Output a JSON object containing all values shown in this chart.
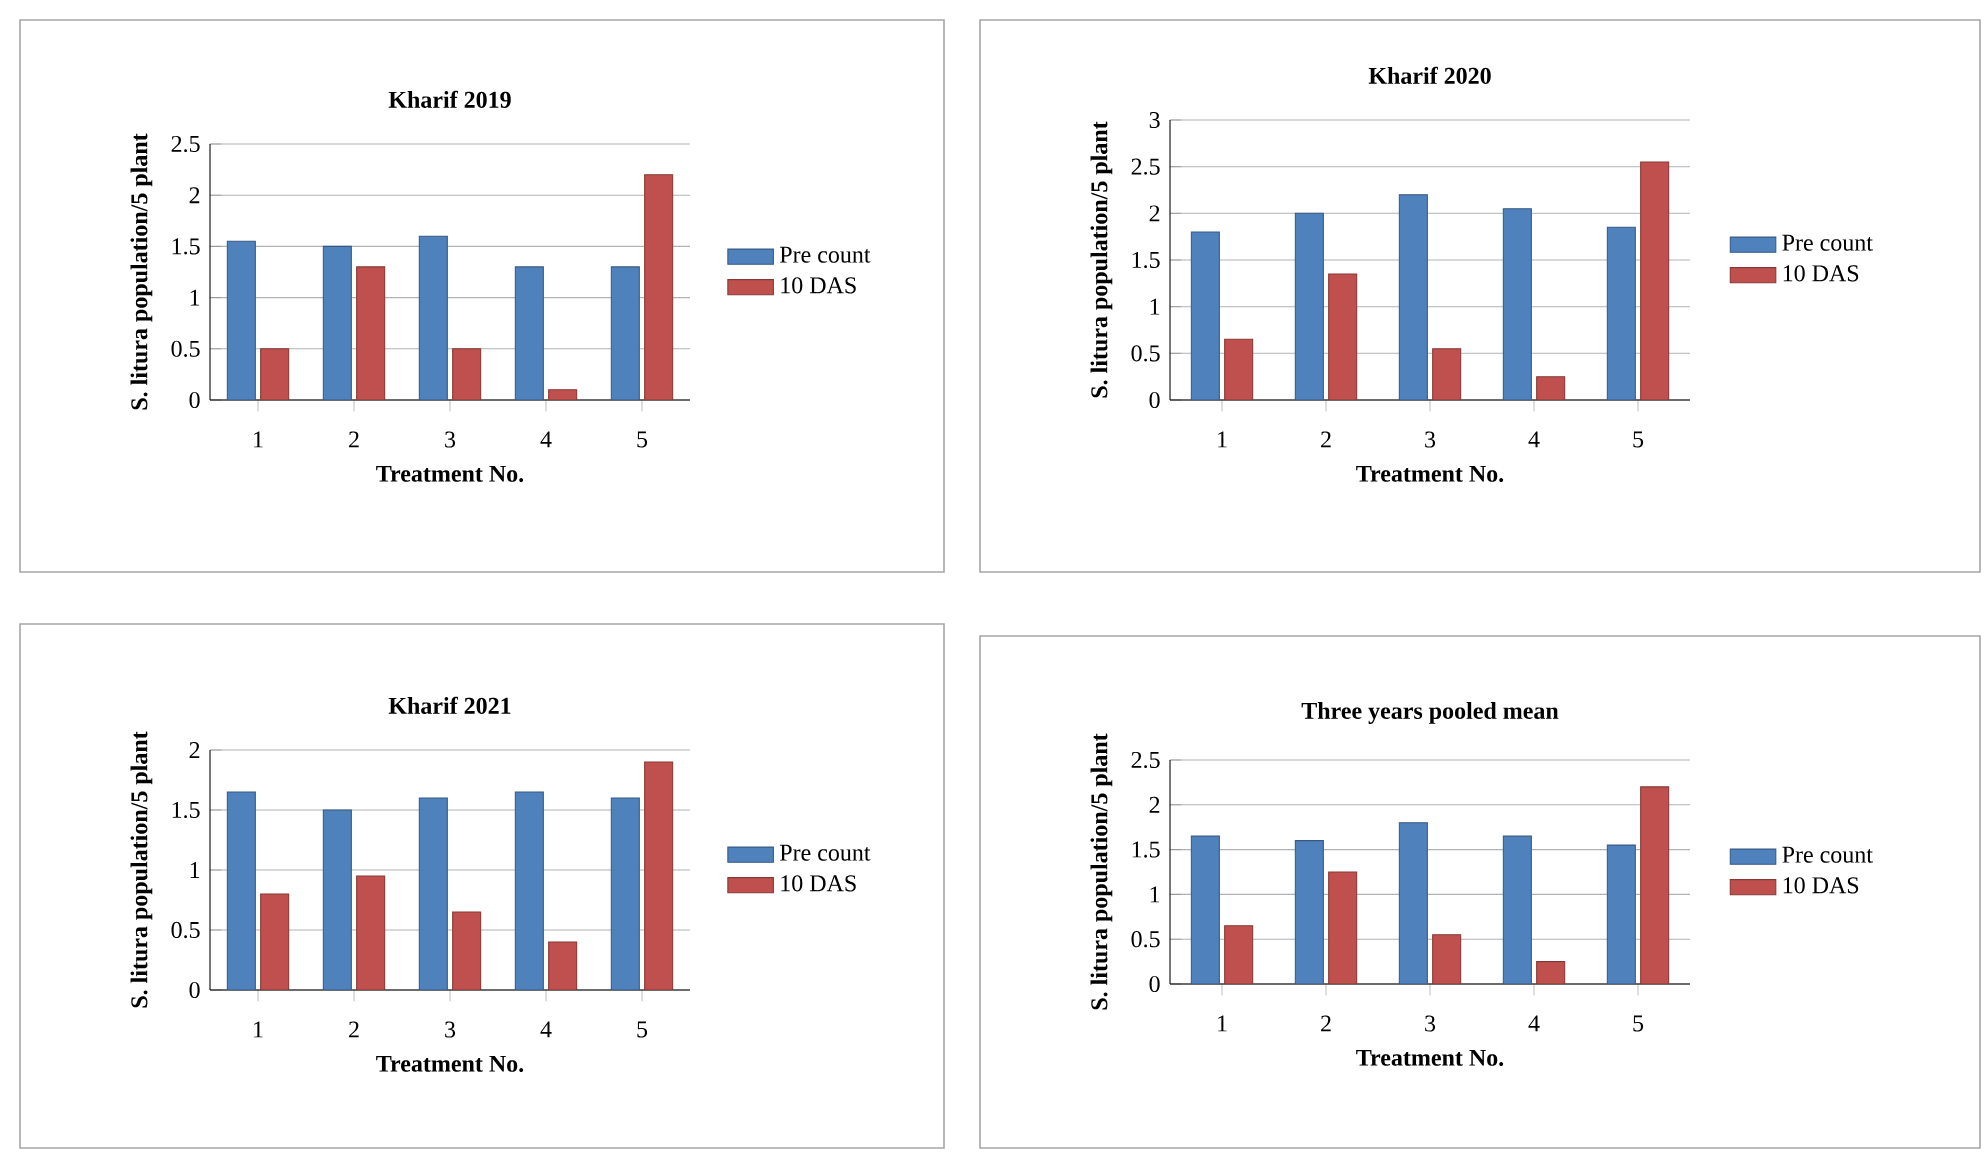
{
  "chart_data": [
    {
      "type": "bar",
      "title": "Kharif 2019",
      "xlabel": "Treatment No.",
      "ylabel": "S. litura population/5 plant",
      "categories": [
        "1",
        "2",
        "3",
        "4",
        "5"
      ],
      "series": [
        {
          "name": "Pre count",
          "color": "#4f81bd",
          "values": [
            1.55,
            1.5,
            1.6,
            1.3,
            1.3
          ]
        },
        {
          "name": "10 DAS",
          "color": "#c0504d",
          "values": [
            0.5,
            1.3,
            0.5,
            0.1,
            2.2
          ]
        }
      ],
      "ylim": [
        0,
        2.5
      ],
      "yticks": [
        0,
        0.5,
        1,
        1.5,
        2,
        2.5
      ],
      "grid": "y",
      "legend": "right"
    },
    {
      "type": "bar",
      "title": "Kharif 2020",
      "xlabel": "Treatment No.",
      "ylabel": "S. litura population/5 plant",
      "categories": [
        "1",
        "2",
        "3",
        "4",
        "5"
      ],
      "series": [
        {
          "name": "Pre count",
          "color": "#4f81bd",
          "values": [
            1.8,
            2.0,
            2.2,
            2.05,
            1.85
          ]
        },
        {
          "name": "10 DAS",
          "color": "#c0504d",
          "values": [
            0.65,
            1.35,
            0.55,
            0.25,
            2.55
          ]
        }
      ],
      "ylim": [
        0,
        3
      ],
      "yticks": [
        0,
        0.5,
        1,
        1.5,
        2,
        2.5,
        3
      ],
      "grid": "y",
      "legend": "right"
    },
    {
      "type": "bar",
      "title": "Kharif 2021",
      "xlabel": "Treatment No.",
      "ylabel": "S. litura population/5 plant",
      "categories": [
        "1",
        "2",
        "3",
        "4",
        "5"
      ],
      "series": [
        {
          "name": "Pre count",
          "color": "#4f81bd",
          "values": [
            1.65,
            1.5,
            1.6,
            1.65,
            1.6
          ]
        },
        {
          "name": "10 DAS",
          "color": "#c0504d",
          "values": [
            0.8,
            0.95,
            0.65,
            0.4,
            1.9
          ]
        }
      ],
      "ylim": [
        0,
        2
      ],
      "yticks": [
        0,
        0.5,
        1,
        1.5,
        2
      ],
      "grid": "y",
      "legend": "right"
    },
    {
      "type": "bar",
      "title": "Three years pooled mean",
      "xlabel": "Treatment No.",
      "ylabel": "S. litura population/5 plant",
      "categories": [
        "1",
        "2",
        "3",
        "4",
        "5"
      ],
      "series": [
        {
          "name": "Pre count",
          "color": "#4f81bd",
          "values": [
            1.65,
            1.6,
            1.8,
            1.65,
            1.55
          ]
        },
        {
          "name": "10 DAS",
          "color": "#c0504d",
          "values": [
            0.65,
            1.25,
            0.55,
            0.25,
            2.2
          ]
        }
      ],
      "ylim": [
        0,
        2.5
      ],
      "yticks": [
        0,
        0.5,
        1,
        1.5,
        2,
        2.5
      ],
      "grid": "y",
      "legend": "right"
    }
  ]
}
